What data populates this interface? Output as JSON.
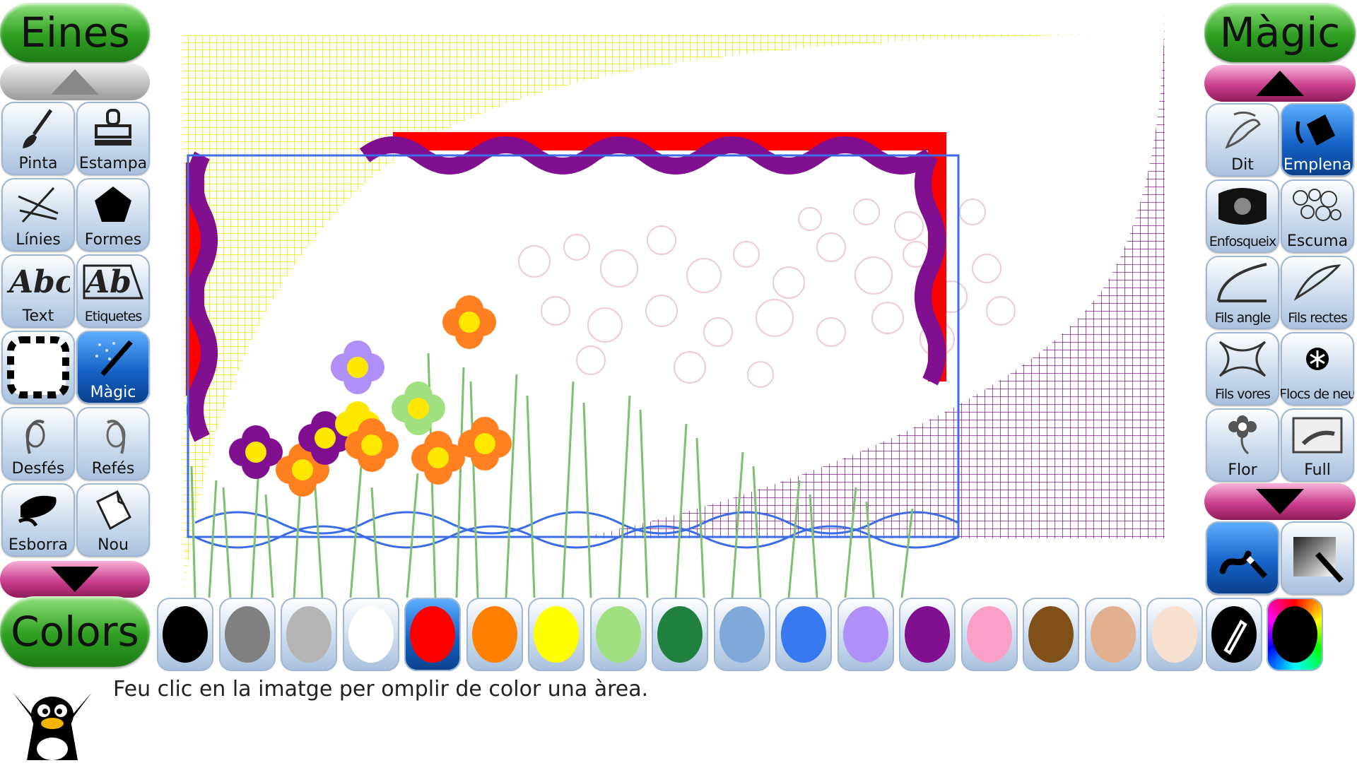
{
  "left_panel": {
    "title": "Eines",
    "tools": [
      {
        "label": "Pinta",
        "icon": "paintbrush-icon"
      },
      {
        "label": "Estampa",
        "icon": "stamp-icon"
      },
      {
        "label": "Línies",
        "icon": "lines-icon"
      },
      {
        "label": "Formes",
        "icon": "pentagon-icon"
      },
      {
        "label": "Text",
        "icon": "text-abc-icon"
      },
      {
        "label": "Etiquetes",
        "icon": "label-ab-icon"
      },
      {
        "label": "",
        "icon": "select-frame-icon"
      },
      {
        "label": "Màgic",
        "icon": "magic-wand-icon",
        "active": true
      },
      {
        "label": "Desfés",
        "icon": "undo-icon"
      },
      {
        "label": "Refés",
        "icon": "redo-icon"
      },
      {
        "label": "Esborra",
        "icon": "eraser-icon"
      },
      {
        "label": "Nou",
        "icon": "new-page-icon"
      }
    ]
  },
  "right_panel": {
    "title": "Màgic",
    "tools": [
      {
        "label": "Dit",
        "icon": "smudge-finger-icon"
      },
      {
        "label": "Emplena",
        "icon": "fill-bucket-icon",
        "active": true
      },
      {
        "label": "Enfosqueix",
        "icon": "darken-icon"
      },
      {
        "label": "Escuma",
        "icon": "foam-icon"
      },
      {
        "label": "Fils angle",
        "icon": "string-angle-icon"
      },
      {
        "label": "Fils rectes",
        "icon": "string-straight-icon"
      },
      {
        "label": "Fils vores",
        "icon": "string-edges-icon"
      },
      {
        "label": "Flocs de neu",
        "icon": "snowflake-icon"
      },
      {
        "label": "Flor",
        "icon": "flower-icon"
      },
      {
        "label": "Full",
        "icon": "page-fold-icon"
      }
    ],
    "modes": [
      {
        "icon": "wand-paint-mode-icon",
        "active": true
      },
      {
        "icon": "wand-fullscreen-mode-icon",
        "active": false
      }
    ]
  },
  "colors": {
    "title": "Colors",
    "swatches": [
      "#000000",
      "#808080",
      "#b4b4b4",
      "#ffffff",
      "#ff0000",
      "#ff8000",
      "#ffff00",
      "#a0e080",
      "#208040",
      "#80a8d8",
      "#3878f0",
      "#b090f8",
      "#801090",
      "#f8a0c8",
      "#805018",
      "#e0b090",
      "#f8e0d0"
    ],
    "selected_index": 4,
    "picker_icon": "color-picker-icon",
    "rainbow_icon": "rainbow-palette-icon"
  },
  "status": {
    "message": "Feu clic en la imatge per omplir de color una àrea.",
    "mascot_icon": "tux-penguin-icon"
  }
}
